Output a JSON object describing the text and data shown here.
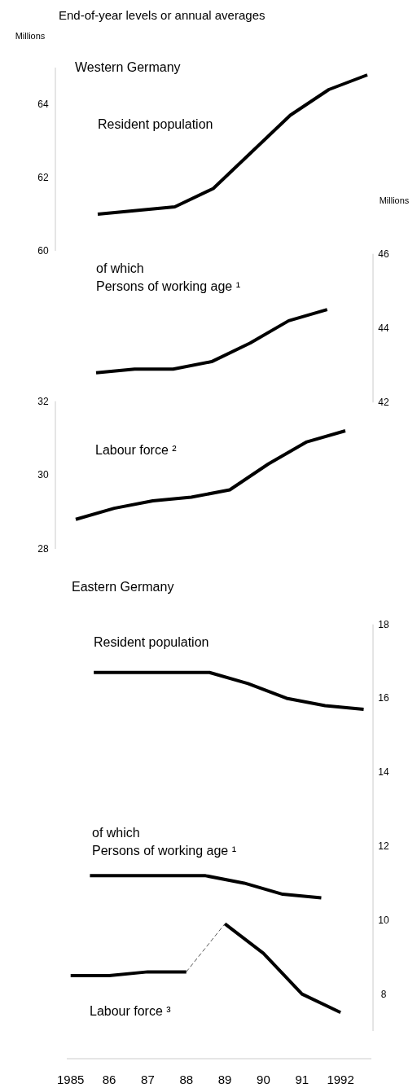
{
  "chart_data": [
    {
      "type": "line",
      "title": "Western Germany",
      "annotations": [
        "End-of-year levels or annual averages"
      ],
      "ylabel": "Millions",
      "categories": [
        null,
        null,
        null,
        null,
        null,
        null,
        null,
        null
      ],
      "ylim": [
        60,
        65
      ],
      "yticks": [
        60,
        62,
        64
      ],
      "tick_labels": "y",
      "series": [
        {
          "name": "Resident population",
          "color": "#000000",
          "values": [
            61.0,
            61.1,
            61.2,
            61.7,
            62.7,
            63.7,
            64.4,
            64.8
          ]
        }
      ]
    },
    {
      "type": "line",
      "ylabel": "Millions",
      "categories": [
        null,
        null,
        null,
        null,
        null,
        null,
        null,
        null
      ],
      "ylim": [
        42,
        46
      ],
      "yticks": [
        42,
        44,
        46
      ],
      "tick_labels": "y",
      "series": [
        {
          "name": "of which\nPersons of working age ¹",
          "color": "#000000",
          "values": [
            42.8,
            42.9,
            42.9,
            43.1,
            43.6,
            44.2,
            44.5,
            null
          ]
        }
      ]
    },
    {
      "type": "line",
      "categories": [
        null,
        null,
        null,
        null,
        null,
        null,
        null,
        null
      ],
      "ylim": [
        28,
        32
      ],
      "yticks": [
        28,
        30,
        32
      ],
      "tick_labels": "y",
      "series": [
        {
          "name": "Labour force ²",
          "color": "#000000",
          "values": [
            28.8,
            29.1,
            29.3,
            29.4,
            29.6,
            30.3,
            30.9,
            31.2
          ]
        }
      ]
    },
    {
      "type": "line",
      "title": "Eastern Germany",
      "xlim": [
        1984.9,
        1992.8
      ],
      "xticks": [
        {
          "value": 1985,
          "label": "1985"
        },
        {
          "value": 1986,
          "label": "86"
        },
        {
          "value": 1987,
          "label": "87"
        },
        {
          "value": 1988,
          "label": "88"
        },
        {
          "value": 1989,
          "label": "89"
        },
        {
          "value": 1990,
          "label": "90"
        },
        {
          "value": 1991,
          "label": "91"
        },
        {
          "value": 1992,
          "label": "1992"
        }
      ],
      "ylim": [
        7,
        18
      ],
      "yticks": [
        8,
        10,
        12,
        14,
        16,
        18
      ],
      "series": [
        {
          "name": "Resident population",
          "color": "#000000",
          "x": [
            1985.6,
            1986.6,
            1987.6,
            1988.6,
            1989.6,
            1990.6,
            1991.6,
            1992.6
          ],
          "values": [
            16.7,
            16.7,
            16.7,
            16.7,
            16.4,
            16.0,
            15.8,
            15.7
          ]
        },
        {
          "name": "of which\nPersons of working age ¹",
          "color": "#000000",
          "x": [
            1985.5,
            1986.5,
            1987.5,
            1988.5,
            1989.5,
            1990.5,
            1991.5
          ],
          "values": [
            11.2,
            11.2,
            11.2,
            11.2,
            11.0,
            10.7,
            10.6
          ]
        },
        {
          "name": "Labour force ³",
          "color": "#000000",
          "x": [
            1985,
            1986,
            1987,
            1988
          ],
          "values": [
            8.5,
            8.5,
            8.6,
            8.6
          ]
        },
        {
          "color": "#555555",
          "line_style": "dashed",
          "x": [
            1988,
            1989
          ],
          "values": [
            8.6,
            9.9
          ]
        },
        {
          "color": "#000000",
          "x": [
            1989,
            1990,
            1991,
            1992
          ],
          "values": [
            9.9,
            9.1,
            8.0,
            7.5
          ]
        }
      ]
    }
  ]
}
